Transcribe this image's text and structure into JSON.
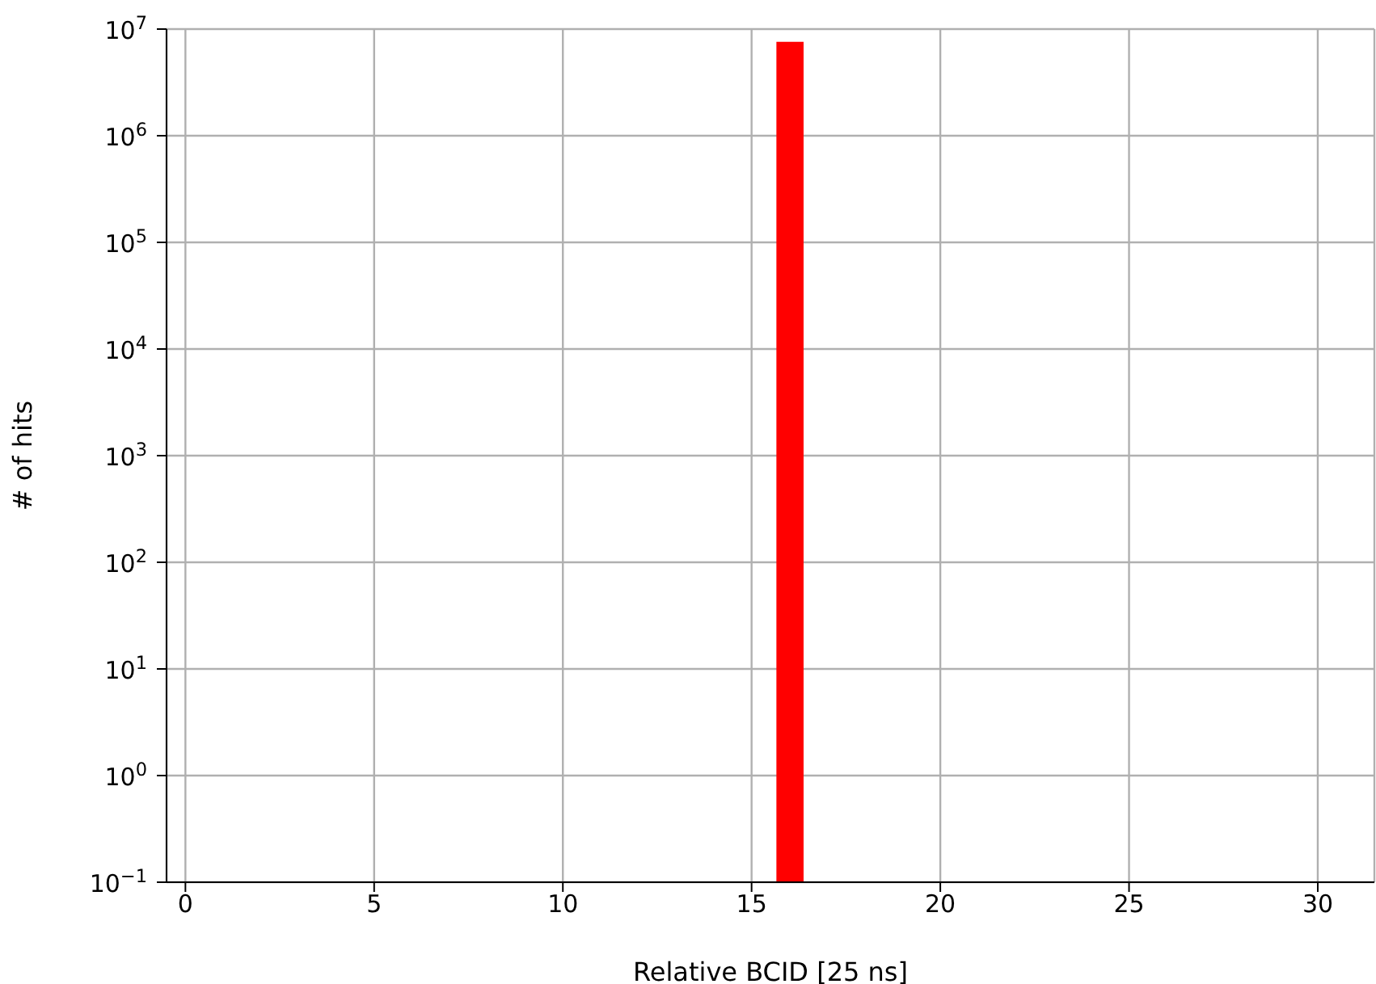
{
  "chart_data": {
    "type": "bar",
    "xlabel": "Relative BCID [25 ns]",
    "ylabel": "# of hits",
    "x": [
      16
    ],
    "series": [
      {
        "color": "#ff0000",
        "values": [
          7600000
        ]
      }
    ],
    "xlim": [
      -0.5,
      31.5
    ],
    "xticks": [
      0,
      5,
      10,
      15,
      20,
      25,
      30
    ],
    "ylim": [
      0.1,
      10000000
    ],
    "yticks": [
      {
        "value": 0.1,
        "label": "10$^{−1}$"
      },
      {
        "value": 1,
        "label": "10$^{0}$"
      },
      {
        "value": 10,
        "label": "10$^{1}$"
      },
      {
        "value": 100,
        "label": "10$^{2}$"
      },
      {
        "value": 1000,
        "label": "10$^{3}$"
      },
      {
        "value": 10000,
        "label": "10$^{4}$"
      },
      {
        "value": 100000,
        "label": "10$^{5}$"
      },
      {
        "value": 1000000,
        "label": "10$^{6}$"
      },
      {
        "value": 10000000,
        "label": "10$^{7}$"
      }
    ],
    "log": true,
    "grid": true
  }
}
